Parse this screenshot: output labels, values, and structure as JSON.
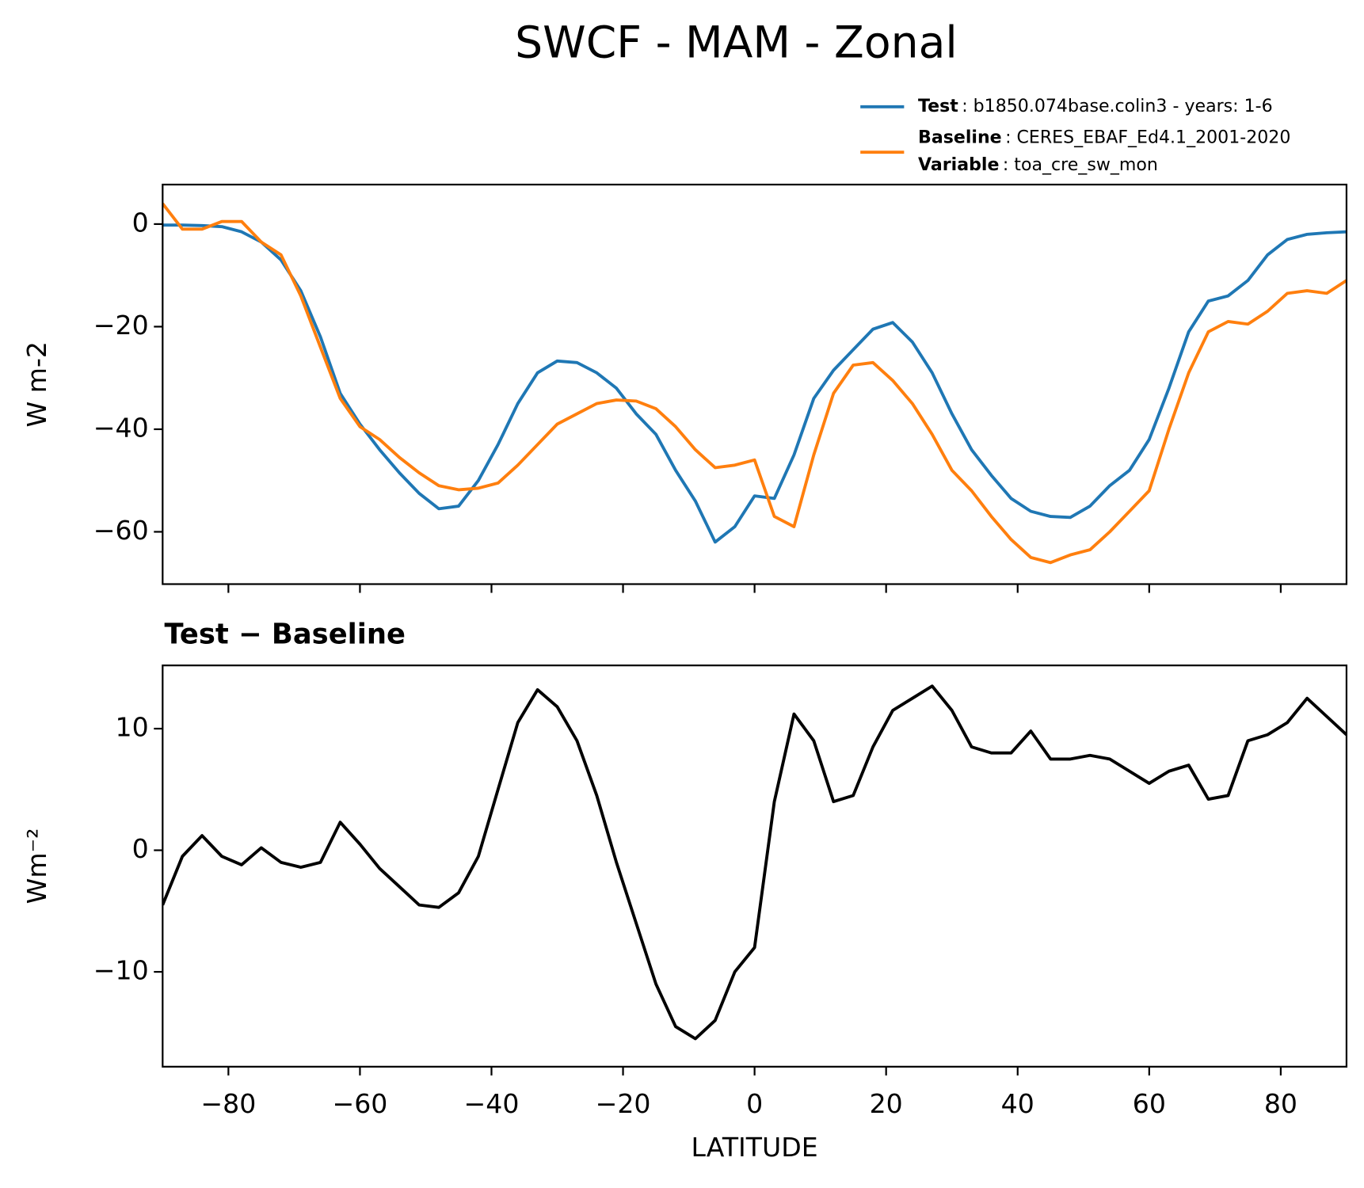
{
  "title": "SWCF - MAM - Zonal",
  "chart_data": [
    {
      "type": "line",
      "x": [
        -90,
        -87,
        -84,
        -81,
        -78,
        -75,
        -72,
        -69,
        -66,
        -63,
        -60,
        -57,
        -54,
        -51,
        -48,
        -45,
        -42,
        -39,
        -36,
        -33,
        -30,
        -27,
        -24,
        -21,
        -18,
        -15,
        -12,
        -9,
        -6,
        -3,
        0,
        3,
        6,
        9,
        12,
        15,
        18,
        21,
        24,
        27,
        30,
        33,
        36,
        39,
        42,
        45,
        48,
        51,
        54,
        57,
        60,
        63,
        66,
        69,
        72,
        75,
        78,
        81,
        84,
        87,
        90
      ],
      "series": [
        {
          "name": "Test",
          "legend_detail": ": b1850.074base.colin3 - years: 1-6",
          "color": "#1f77b4",
          "values": [
            -0.2,
            -0.2,
            -0.3,
            -0.5,
            -1.5,
            -3.5,
            -7,
            -13,
            -22,
            -33,
            -39,
            -44,
            -48.5,
            -52.5,
            -55.5,
            -55,
            -50,
            -43,
            -35,
            -29,
            -26.7,
            -27,
            -29,
            -32,
            -37,
            -41,
            -48,
            -54,
            -62,
            -59,
            -53,
            -53.5,
            -45,
            -34,
            -28.5,
            -24.5,
            -20.5,
            -19.2,
            -23,
            -29,
            -37,
            -44,
            -49,
            -53.5,
            -56,
            -57,
            -57.2,
            -55,
            -51,
            -48,
            -42,
            -32,
            -21,
            -15,
            -14,
            -11,
            -6,
            -3,
            -2,
            -1.7,
            -1.5
          ]
        },
        {
          "name": "Baseline",
          "legend_detail": ": CERES_EBAF_Ed4.1_2001-2020",
          "legend_extra": [
            "Variable",
            ": toa_cre_sw_mon"
          ],
          "color": "#ff7f0e",
          "values": [
            4,
            -1,
            -1,
            0.5,
            0.5,
            -3.5,
            -6,
            -14,
            -24,
            -34,
            -39.5,
            -42,
            -45.5,
            -48.5,
            -51,
            -51.8,
            -51.5,
            -50.5,
            -47,
            -43,
            -39,
            -37,
            -35,
            -34.3,
            -34.5,
            -36,
            -39.5,
            -44,
            -47.5,
            -47,
            -46,
            -57,
            -59,
            -45,
            -33,
            -27.5,
            -27,
            -30.5,
            -35,
            -41,
            -48,
            -52,
            -57,
            -61.5,
            -65,
            -66,
            -64.5,
            -63.5,
            -60,
            -56,
            -52,
            -40,
            -29,
            -21,
            -19,
            -19.5,
            -17,
            -13.5,
            -13,
            -13.5,
            -11
          ]
        }
      ],
      "ylabel": "W m-2",
      "xlim": [
        -90,
        90
      ],
      "ylim": [
        -70.2,
        7.7
      ],
      "yticks": [
        {
          "value": -60,
          "label": "−60"
        },
        {
          "value": -40,
          "label": "−40"
        },
        {
          "value": -20,
          "label": "−20"
        },
        0
      ]
    },
    {
      "type": "line",
      "title": "Test − Baseline",
      "x": [
        -90,
        -87,
        -84,
        -81,
        -78,
        -75,
        -72,
        -69,
        -66,
        -63,
        -60,
        -57,
        -54,
        -51,
        -48,
        -45,
        -42,
        -39,
        -36,
        -33,
        -30,
        -27,
        -24,
        -21,
        -18,
        -15,
        -12,
        -9,
        -6,
        -3,
        0,
        3,
        6,
        9,
        12,
        15,
        18,
        21,
        24,
        27,
        30,
        33,
        36,
        39,
        42,
        45,
        48,
        51,
        54,
        57,
        60,
        63,
        66,
        69,
        72,
        75,
        78,
        81,
        84,
        87,
        90
      ],
      "series": [
        {
          "color": "#000000",
          "values": [
            -4.5,
            -0.5,
            1.2,
            -0.5,
            -1.2,
            0.2,
            -1,
            -1.4,
            -1,
            2.3,
            0.5,
            -1.5,
            -3,
            -4.5,
            -4.7,
            -3.5,
            -0.5,
            5,
            10.5,
            13.2,
            11.8,
            9,
            4.5,
            -1,
            -6,
            -11,
            -14.5,
            -15.5,
            -14,
            -10,
            -8,
            4,
            11.2,
            9,
            4,
            4.5,
            8.5,
            11.5,
            12.5,
            13.5,
            11.5,
            8.5,
            8,
            8,
            9.8,
            7.5,
            7.5,
            7.8,
            7.5,
            6.5,
            5.5,
            6.5,
            7,
            4.2,
            4.5,
            9,
            9.5,
            10.5,
            12.5,
            11,
            9.5
          ]
        }
      ],
      "xlabel": "LATITUDE",
      "ylabel": "Wm⁻²",
      "xlim": [
        -90,
        90
      ],
      "ylim": [
        -17.8,
        15.2
      ],
      "xticks": [
        {
          "value": -80,
          "label": "−80"
        },
        {
          "value": -60,
          "label": "−60"
        },
        {
          "value": -40,
          "label": "−40"
        },
        {
          "value": -20,
          "label": "−20"
        },
        0,
        20,
        40,
        60,
        80
      ],
      "yticks": [
        {
          "value": -10,
          "label": "−10"
        },
        0,
        10
      ]
    }
  ]
}
